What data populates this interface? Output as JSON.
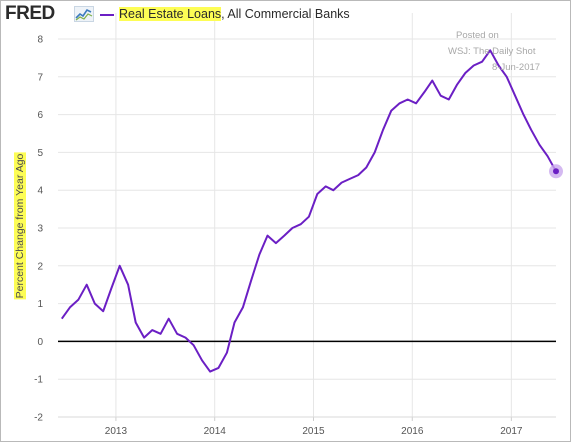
{
  "header": {
    "logo_text": "FRED",
    "logo_icon": "sparkline-chart-icon",
    "legend_highlight": "Real Estate Loans",
    "legend_rest": ", All Commercial Banks"
  },
  "watermark": {
    "line1": "Posted on",
    "line2": "WSJ: The Daily Shot",
    "line3": "8-Jun-2017"
  },
  "colors": {
    "series": "#6b1fc4",
    "highlight": "#fdfd55",
    "zero_line": "#000000",
    "end_marker": "#c9a8ee"
  },
  "chart_data": {
    "type": "line",
    "title": "",
    "xlabel": "",
    "ylabel": "Percent Change from Year Ago",
    "xlim": [
      "2012-06-01",
      "2017-06-15"
    ],
    "ylim": [
      -2,
      8
    ],
    "yticks": [
      -2,
      -1,
      0,
      1,
      2,
      3,
      4,
      5,
      6,
      7,
      8
    ],
    "xticks": [
      {
        "date": "2013-01-01",
        "label": "2013"
      },
      {
        "date": "2014-01-01",
        "label": "2014"
      },
      {
        "date": "2015-01-01",
        "label": "2015"
      },
      {
        "date": "2016-01-01",
        "label": "2016"
      },
      {
        "date": "2017-01-01",
        "label": "2017"
      }
    ],
    "grid": true,
    "legend_position": "top-left",
    "series": [
      {
        "name": "Real Estate Loans, All Commercial Banks",
        "x": [
          "2012-06",
          "2012-07",
          "2012-08",
          "2012-09",
          "2012-10",
          "2012-11",
          "2012-12",
          "2013-01",
          "2013-02",
          "2013-03",
          "2013-04",
          "2013-05",
          "2013-06",
          "2013-07",
          "2013-08",
          "2013-09",
          "2013-10",
          "2013-11",
          "2013-12",
          "2014-01",
          "2014-02",
          "2014-03",
          "2014-04",
          "2014-05",
          "2014-06",
          "2014-07",
          "2014-08",
          "2014-09",
          "2014-10",
          "2014-11",
          "2014-12",
          "2015-01",
          "2015-02",
          "2015-03",
          "2015-04",
          "2015-05",
          "2015-06",
          "2015-07",
          "2015-08",
          "2015-09",
          "2015-10",
          "2015-11",
          "2015-12",
          "2016-01",
          "2016-02",
          "2016-03",
          "2016-04",
          "2016-05",
          "2016-06",
          "2016-07",
          "2016-08",
          "2016-09",
          "2016-10",
          "2016-11",
          "2016-12",
          "2017-01",
          "2017-02",
          "2017-03",
          "2017-04",
          "2017-05",
          "2017-06"
        ],
        "values": [
          0.6,
          0.9,
          1.1,
          1.5,
          1.0,
          0.8,
          1.4,
          2.0,
          1.5,
          0.5,
          0.1,
          0.3,
          0.2,
          0.6,
          0.2,
          0.1,
          -0.1,
          -0.5,
          -0.8,
          -0.7,
          -0.3,
          0.5,
          0.9,
          1.6,
          2.3,
          2.8,
          2.6,
          2.8,
          3.0,
          3.1,
          3.3,
          3.9,
          4.1,
          4.0,
          4.2,
          4.3,
          4.4,
          4.6,
          5.0,
          5.6,
          6.1,
          6.3,
          6.4,
          6.3,
          6.6,
          6.9,
          6.5,
          6.4,
          6.8,
          7.1,
          7.3,
          7.4,
          7.7,
          7.3,
          7.0,
          6.5,
          6.0,
          5.6,
          5.2,
          4.9,
          4.5
        ]
      }
    ]
  }
}
